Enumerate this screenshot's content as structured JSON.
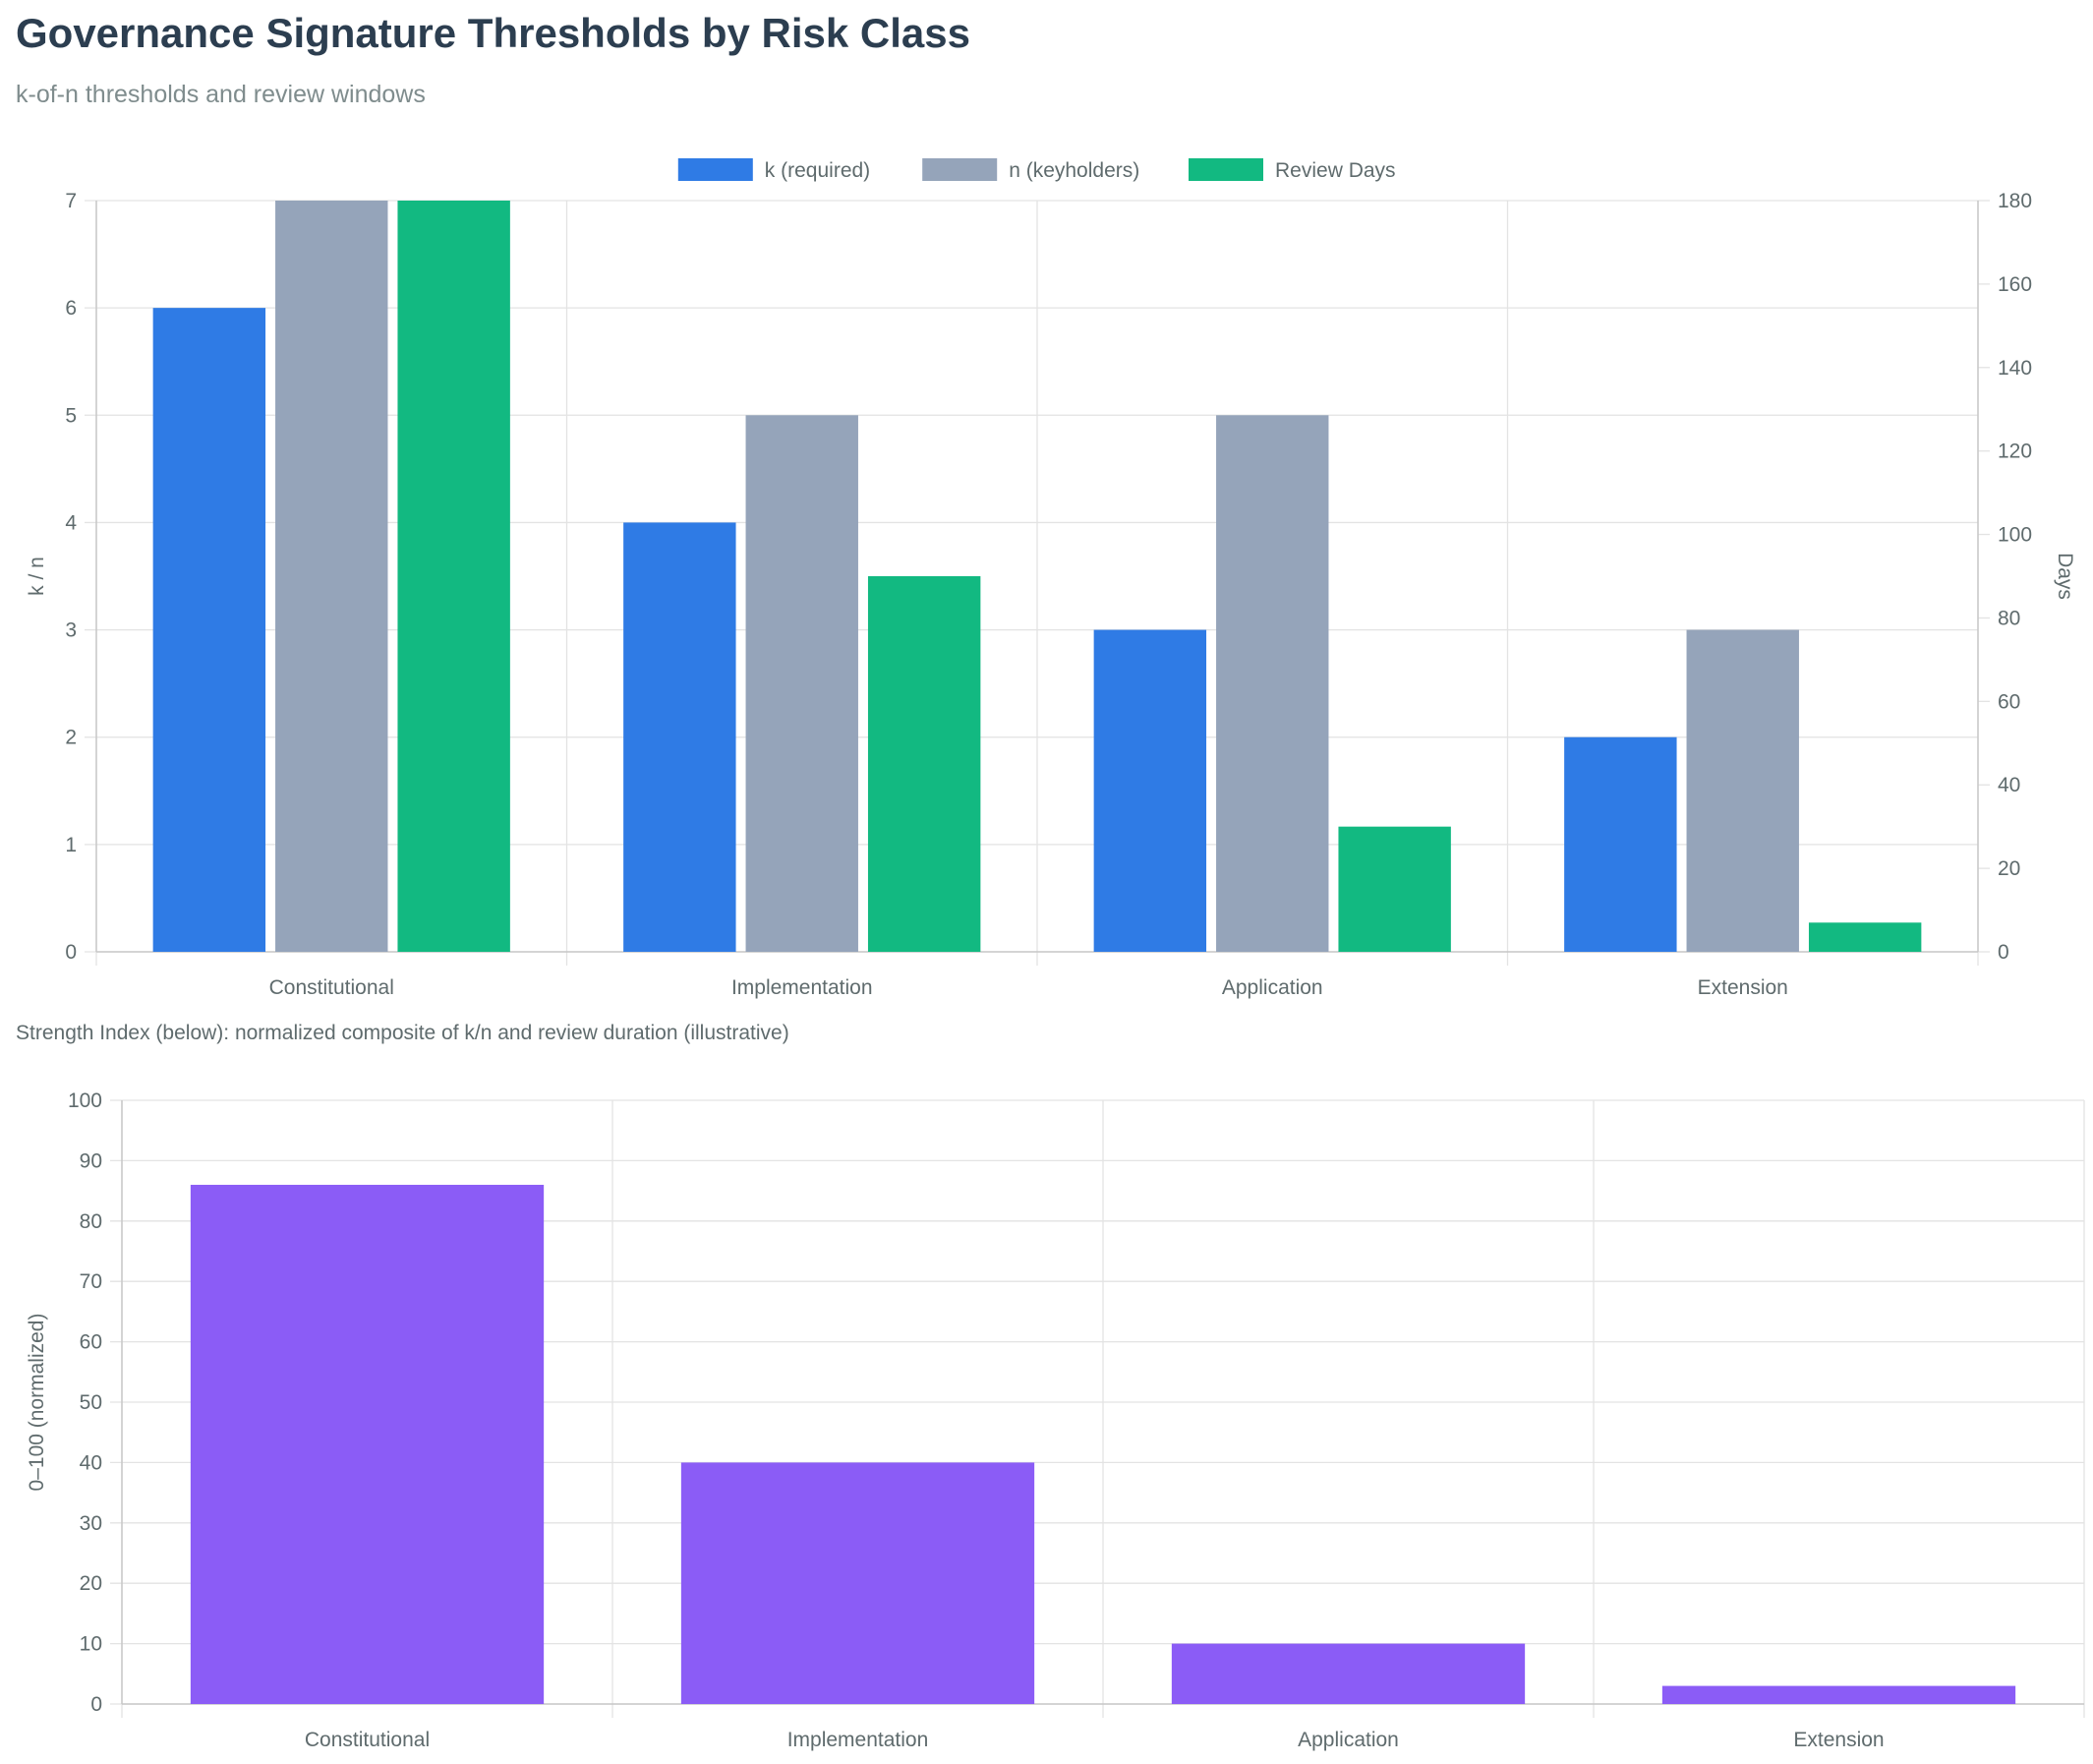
{
  "header": {
    "title": "Governance Signature Thresholds by Risk Class",
    "subtitle": "k-of-n thresholds and review windows"
  },
  "note": "Strength Index (below): normalized composite of k/n and review duration (illustrative)",
  "colors": {
    "k": "#2f7be5",
    "n": "#95a4ba",
    "review": "#12b981",
    "strength": "#8b5cf6"
  },
  "chart_data": [
    {
      "type": "bar",
      "categories": [
        "Constitutional",
        "Implementation",
        "Application",
        "Extension"
      ],
      "series": [
        {
          "name": "k (required)",
          "axis": "left",
          "values": [
            6,
            4,
            3,
            2
          ]
        },
        {
          "name": "n (keyholders)",
          "axis": "left",
          "values": [
            7,
            5,
            5,
            3
          ]
        },
        {
          "name": "Review Days",
          "axis": "right",
          "values": [
            180,
            90,
            30,
            7
          ]
        }
      ],
      "ylabel": "k / n",
      "ylim": [
        0,
        7
      ],
      "yticks": [
        0,
        1,
        2,
        3,
        4,
        5,
        6,
        7
      ],
      "y2label": "Days",
      "y2lim": [
        0,
        180
      ],
      "y2ticks": [
        0,
        20,
        40,
        60,
        80,
        100,
        120,
        140,
        160,
        180
      ],
      "legend": "top-center",
      "grid": true
    },
    {
      "type": "bar",
      "categories": [
        "Constitutional",
        "Implementation",
        "Application",
        "Extension"
      ],
      "series": [
        {
          "values": [
            86,
            40,
            10,
            3
          ]
        }
      ],
      "ylabel": "0–100 (normalized)",
      "ylim": [
        0,
        100
      ],
      "yticks": [
        0,
        10,
        20,
        30,
        40,
        50,
        60,
        70,
        80,
        90,
        100
      ],
      "grid": true
    }
  ]
}
